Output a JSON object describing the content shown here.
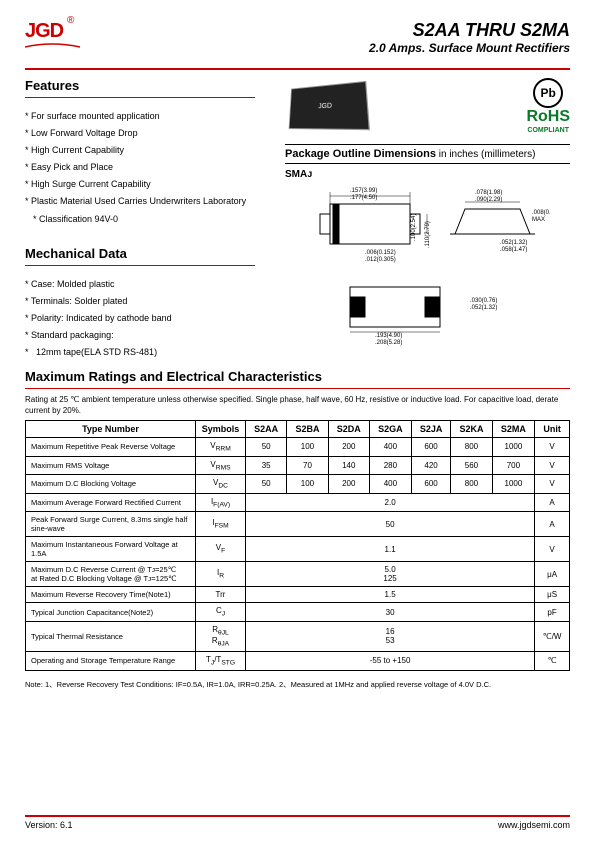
{
  "header": {
    "logo_text": "JGD",
    "title": "S2AA THRU S2MA",
    "subtitle": "2.0 Amps. Surface Mount Rectifiers"
  },
  "features": {
    "heading": "Features",
    "items": [
      "For surface mounted application",
      "Low Forward Voltage Drop",
      "High Current Capability",
      "Easy Pick and Place",
      "High Surge Current Capability",
      "Plastic Material Used Carries Underwriters Laboratory",
      "Classification 94V-0"
    ]
  },
  "mechanical": {
    "heading": "Mechanical Data",
    "items": [
      "Case: Molded plastic",
      "Terminals: Solder plated",
      "Polarity: Indicated by cathode band",
      "Standard packaging:",
      "12mm tape(ELA STD RS-481)"
    ]
  },
  "compliance": {
    "pb": "Pb",
    "rohs": "RoHS",
    "rohs_sub": "COMPLIANT"
  },
  "package": {
    "title_bold": "Package Outline Dimensions",
    "title_rest": " in inches (millimeters)",
    "label": "SMAᴊ",
    "dims": {
      "w1": ".157(3.99)",
      "w2": ".177(4.50)",
      "h1": ".100(2.54)",
      "h2": ".110(2.79)",
      "t1": ".006(0.152)",
      "t2": ".012(0.305)",
      "b1": ".193(4.90)",
      "b2": ".208(5.28)",
      "p1": ".078(1.98)",
      "p2": ".090(2.29)",
      "q1": ".008(0.20)",
      "q2": "MAX",
      "r1": ".052(1.32)",
      "r2": ".058(1.47)",
      "s1": ".030(0.76)",
      "s2": ".052(1.32)"
    }
  },
  "ratings": {
    "heading": "Maximum Ratings and Electrical Characteristics",
    "condition": "Rating at 25 ℃ ambient temperature unless otherwise specified. Single phase, half wave, 60 Hz, resistive or inductive load. For capacitive load, derate current by 20%.",
    "columns": [
      "Type Number",
      "Symbols",
      "S2AA",
      "S2BA",
      "S2DA",
      "S2GA",
      "S2JA",
      "S2KA",
      "S2MA",
      "Unit"
    ],
    "rows": [
      {
        "param": "Maximum Repetitive Peak Reverse Voltage",
        "sym": "V<sub>RRM</sub>",
        "vals": [
          "50",
          "100",
          "200",
          "400",
          "600",
          "800",
          "1000"
        ],
        "unit": "V",
        "span": false
      },
      {
        "param": "Maximum RMS Voltage",
        "sym": "V<sub>RMS</sub>",
        "vals": [
          "35",
          "70",
          "140",
          "280",
          "420",
          "560",
          "700"
        ],
        "unit": "V",
        "span": false
      },
      {
        "param": "Maximum D.C Blocking Voltage",
        "sym": "V<sub>DC</sub>",
        "vals": [
          "50",
          "100",
          "200",
          "400",
          "600",
          "800",
          "1000"
        ],
        "unit": "V",
        "span": false
      },
      {
        "param": "Maximum Average Forward Rectified Current",
        "sym": "I<sub>F(AV)</sub>",
        "val": "2.0",
        "unit": "A",
        "span": true
      },
      {
        "param": "Peak Forward Surge Current, 8.3ms single half sine-wave",
        "sym": "I<sub>FSM</sub>",
        "val": "50",
        "unit": "A",
        "span": true
      },
      {
        "param": "Maximum Instantaneous Forward Voltage at 1.5A",
        "sym": "V<sub>F</sub>",
        "val": "1.1",
        "unit": "V",
        "span": true
      },
      {
        "param": "Maximum D.C Reverse Current @ Tᴊ=25℃<br>at Rated D.C Blocking Voltage @ Tᴊ=125℃",
        "sym": "I<sub>R</sub>",
        "val": "5.0<br>125",
        "unit": "μA",
        "span": true
      },
      {
        "param": "Maximum Reverse Recovery Time(Note1)",
        "sym": "Trr",
        "val": "1.5",
        "unit": "μS",
        "span": true
      },
      {
        "param": "Typical Junction Capacitance(Note2)",
        "sym": "C<sub>J</sub>",
        "val": "30",
        "unit": "pF",
        "span": true
      },
      {
        "param": "Typical Thermal Resistance",
        "sym": "R<sub>θJL</sub><br>R<sub>θJA</sub>",
        "val": "16<br>53",
        "unit": "℃/W",
        "span": true
      },
      {
        "param": "Operating and Storage Temperature Range",
        "sym": "T<sub>J</sub>/T<sub>STG</sub>",
        "val": "-55 to +150",
        "unit": "℃",
        "span": true
      }
    ]
  },
  "note": "Note: 1、Reverse Recovery Test Conditions: IF=0.5A, IR=1.0A, IRR=0.25A.    2、Measured at 1MHz and applied reverse voltage of 4.0V D.C.",
  "footer": {
    "version": "Version: 6.1",
    "url": "www.jgdsemi.com"
  }
}
